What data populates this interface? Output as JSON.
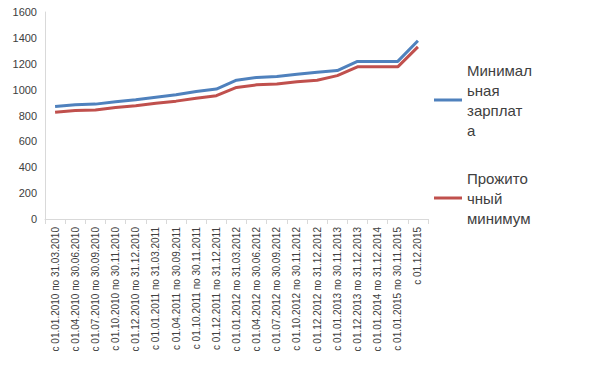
{
  "chart_data": {
    "type": "line",
    "categories": [
      "с 01.01.2010 по 31.03.2010",
      "с 01.04.2010 по 30.06.2010",
      "с 01.07.2010 по 30.09.2010",
      "с 01.10.2010 по 30.11.2010",
      "с 01.12.2010 по 31.12.2010",
      "с 01.01.2011 по 31.03.2011",
      "с 01.04.2011 по 30.09.2011",
      "с 01.10.2011 по 30.11.2011",
      "с 01.12.2011 по 31.12.2011",
      "с 01.01.2012 по 31.03.2012",
      "с 01.04.2012 по 30.06.2012",
      "с 01.07.2012 по 30.09.2012",
      "с 01.10.2012 по 30.11.2012",
      "с 01.12.2012 по 31.12.2012",
      "с 01.01.2013 по 30.11.2013",
      "с 01.12.2013 по 31.12.2013",
      "с 01.01.2014 по 31.12.2014",
      "с 01.01.2015 по 30.11.2015",
      "с 01.12.2015"
    ],
    "series": [
      {
        "name": "Минимальная зарплата",
        "color": "#4f81bd",
        "values": [
          869,
          884,
          888,
          907,
          922,
          941,
          960,
          985,
          1004,
          1073,
          1094,
          1102,
          1118,
          1134,
          1147,
          1218,
          1218,
          1218,
          1378
        ]
      },
      {
        "name": "Прожиточный минимум",
        "color": "#c0504d",
        "values": [
          825,
          839,
          843,
          861,
          875,
          894,
          911,
          934,
          953,
          1017,
          1037,
          1044,
          1060,
          1073,
          1108,
          1176,
          1176,
          1176,
          1330
        ]
      }
    ],
    "ylim": [
      0,
      1600
    ],
    "yticks": [
      0,
      200,
      400,
      600,
      800,
      1000,
      1200,
      1400,
      1600
    ],
    "grid": false,
    "legend": "right"
  }
}
